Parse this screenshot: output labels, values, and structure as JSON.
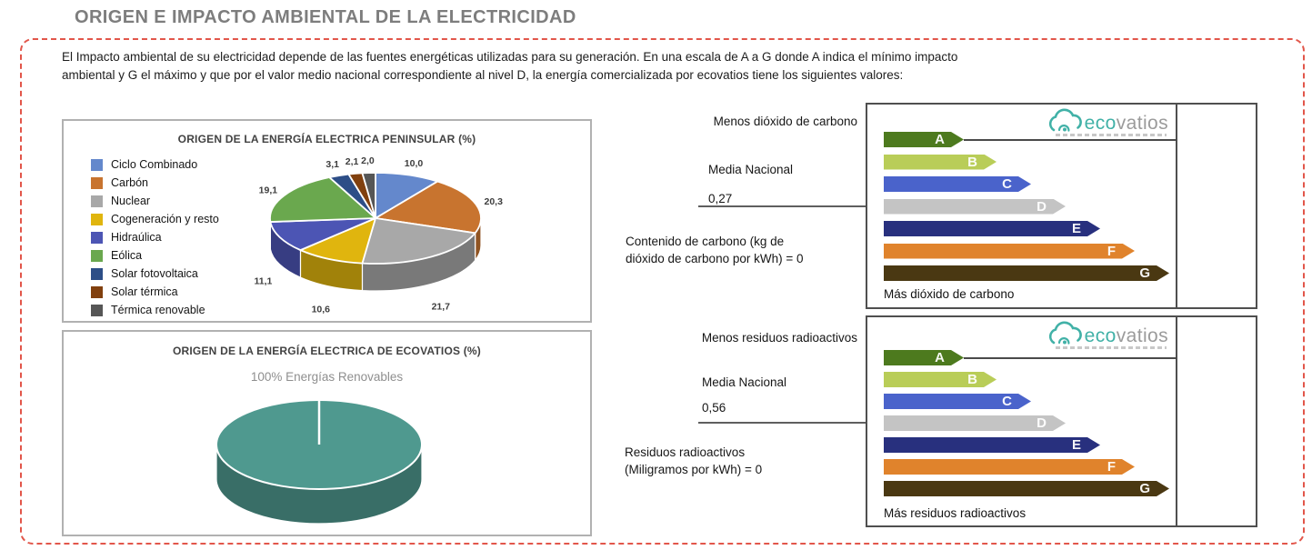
{
  "page": {
    "title": "ORIGEN E IMPACTO AMBIENTAL DE LA ELECTRICIDAD"
  },
  "intro": {
    "line1": "El Impacto ambiental de su electricidad depende de las fuentes energéticas utilizadas para su generación. En una escala de A a G donde A indica el mínimo impacto",
    "line2": "ambiental y G el máximo y que por el valor medio nacional correspondiente al nivel D, la energía comercializada por ecovatios tiene los siguientes valores:"
  },
  "chart_data": [
    {
      "type": "pie",
      "style": "3d",
      "title": "ORIGEN DE LA ENERGÍA ELECTRICA PENINSULAR (%)",
      "unit": "%",
      "legend_position": "left",
      "slices": [
        {
          "label": "Ciclo Combinado",
          "value": 10.0,
          "value_label": "10,0",
          "color": "#6488cc"
        },
        {
          "label": "Carbón",
          "value": 20.3,
          "value_label": "20,3",
          "color": "#c8742f"
        },
        {
          "label": "Nuclear",
          "value": 21.7,
          "value_label": "21,7",
          "color": "#a8a8a8"
        },
        {
          "label": "Cogeneración y resto",
          "value": 10.6,
          "value_label": "10,6",
          "color": "#e0b50e"
        },
        {
          "label": "Hidraúlica",
          "value": 11.1,
          "value_label": "11,1",
          "color": "#4c55b4"
        },
        {
          "label": "Eólica",
          "value": 19.1,
          "value_label": "19,1",
          "color": "#6aa84e"
        },
        {
          "label": "Solar fotovoltaica",
          "value": 3.1,
          "value_label": "3,1",
          "color": "#2d4e87"
        },
        {
          "label": "Solar térmica",
          "value": 2.1,
          "value_label": "2,1",
          "color": "#81400e"
        },
        {
          "label": "Térmica renovable",
          "value": 2.0,
          "value_label": "2,0",
          "color": "#565656"
        }
      ]
    },
    {
      "type": "pie",
      "style": "3d",
      "title": "ORIGEN DE LA ENERGÍA ELECTRICA DE ECOVATIOS (%)",
      "subtitle": "100% Energías Renovables",
      "slices": [
        {
          "label": "Energías Renovables",
          "value": 100,
          "color": "#4f998f"
        }
      ]
    },
    {
      "type": "bar",
      "subtype": "energy-rating-label",
      "top_label": "Menos dióxido de carbono",
      "national_label": "Media Nacional",
      "national_value": "0,27",
      "national_level": "D",
      "company_level": "A",
      "metric_line1": "Contenido de carbono (kg de",
      "metric_line2": "dióxido de carbono por kWh) = 0",
      "bottom_label": "Más dióxido de carbono",
      "categories": [
        "A",
        "B",
        "C",
        "D",
        "E",
        "F",
        "G"
      ],
      "colors": [
        "#4d7a1e",
        "#b9cd58",
        "#4a63cb",
        "#c4c4c4",
        "#28307e",
        "#e0832c",
        "#4a3812"
      ],
      "brand": {
        "highlight": "eco",
        "rest": "vatios"
      }
    },
    {
      "type": "bar",
      "subtype": "energy-rating-label",
      "top_label": "Menos residuos radioactivos",
      "national_label": "Media Nacional",
      "national_value": "0,56",
      "national_level": "D",
      "company_level": "A",
      "metric_line1": "Residuos radioactivos",
      "metric_line2": "(Miligramos por kWh) = 0",
      "bottom_label": "Más residuos radioactivos",
      "categories": [
        "A",
        "B",
        "C",
        "D",
        "E",
        "F",
        "G"
      ],
      "colors": [
        "#4d7a1e",
        "#b9cd58",
        "#4a63cb",
        "#c4c4c4",
        "#28307e",
        "#e0832c",
        "#4a3812"
      ],
      "brand": {
        "highlight": "eco",
        "rest": "vatios"
      }
    }
  ]
}
